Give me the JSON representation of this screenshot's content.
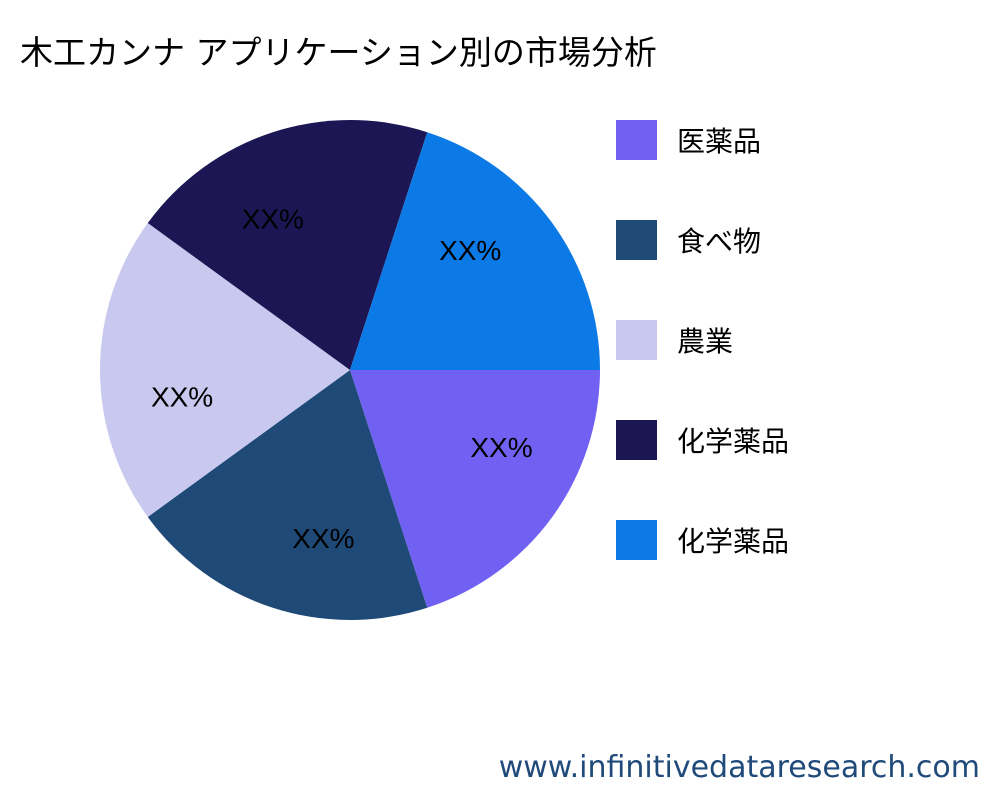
{
  "chart_data": {
    "type": "pie",
    "title": "木工カンナ アプリケーション別の市場分析",
    "start_angle_deg": 0,
    "direction": "clockwise",
    "slices": [
      {
        "label": "医薬品",
        "value": 20,
        "display": "XX%",
        "color": "#7161F2"
      },
      {
        "label": "食べ物",
        "value": 20,
        "display": "XX%",
        "color": "#1F4A78"
      },
      {
        "label": "農業",
        "value": 20,
        "display": "XX%",
        "color": "#C9C9F0"
      },
      {
        "label": "化学薬品",
        "value": 20,
        "display": "XX%",
        "color": "#1C1654"
      },
      {
        "label": "化学薬品",
        "value": 20,
        "display": "XX%",
        "color": "#0C7AE6"
      }
    ],
    "legend_placement": "right"
  },
  "footer": {
    "watermark": "www.infinitivedataresearch.com"
  }
}
